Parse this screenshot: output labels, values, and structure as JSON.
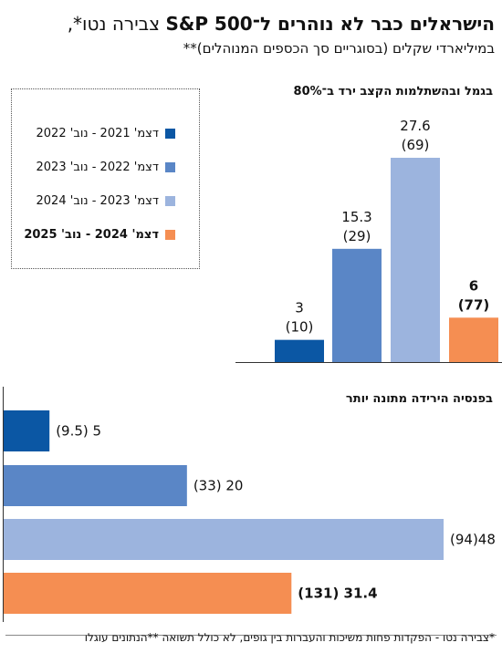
{
  "header": {
    "title_bold": "הישראלים כבר לא נוהרים ל־S&P 500",
    "title_rest": " צבירה נטו*,",
    "subtitle": "במיליארדי שקלים (בסוגריים סך הכספים המנוהלים)**"
  },
  "legend": {
    "items": [
      {
        "label": "דצמ' 2021 - נוב' 2022",
        "color": "#0b57a4",
        "bold": false
      },
      {
        "label": "דצמ' 2022 - נוב' 2023",
        "color": "#5a86c6",
        "bold": false
      },
      {
        "label": "דצמ' 2023 - נוב' 2024",
        "color": "#9cb4de",
        "bold": false
      },
      {
        "label": "דצמ' 2024 - נוב' 2025",
        "color": "#f58e52",
        "bold": true
      }
    ]
  },
  "footnote": "*צבירה נטו - הפקדות פחות משיכות והעברות בין גופים, לא כולל תשואה **הנתונים עוגלו",
  "chart_data": [
    {
      "type": "bar",
      "orientation": "vertical",
      "title": "בגמל ובהשתלמות הקצב ירד ב־80%",
      "categories": [
        "דצמ' 2021 - נוב' 2022",
        "דצמ' 2022 - נוב' 2023",
        "דצמ' 2023 - נוב' 2024",
        "דצמ' 2024 - נוב' 2025"
      ],
      "values": [
        3,
        15.3,
        27.6,
        6
      ],
      "managed_totals": [
        10,
        29,
        69,
        77
      ],
      "value_labels": [
        "3",
        "15.3",
        "27.6",
        "6"
      ],
      "total_labels": [
        "(10)",
        "(29)",
        "(69)",
        "(77)"
      ],
      "colors": [
        "#0b57a4",
        "#5a86c6",
        "#9cb4de",
        "#f58e52"
      ],
      "bold": [
        false,
        false,
        false,
        true
      ],
      "ylim": [
        0,
        30
      ],
      "grid": false,
      "legend_position": "left"
    },
    {
      "type": "bar",
      "orientation": "horizontal",
      "title": "בפנסיה הירידה מתונה יותר",
      "categories": [
        "דצמ' 2021 - נוב' 2022",
        "דצמ' 2022 - נוב' 2023",
        "דצמ' 2023 - נוב' 2024",
        "דצמ' 2024 - נוב' 2025"
      ],
      "values": [
        5,
        20,
        48,
        31.4
      ],
      "managed_totals": [
        9.5,
        33,
        94,
        131
      ],
      "labels": [
        "(9.5)  5",
        "(33)  20",
        "(94)48",
        "(131)  31.4"
      ],
      "colors": [
        "#0b57a4",
        "#5a86c6",
        "#9cb4de",
        "#f58e52"
      ],
      "bold": [
        false,
        false,
        false,
        true
      ],
      "xlim": [
        0,
        48
      ],
      "grid": false
    }
  ]
}
